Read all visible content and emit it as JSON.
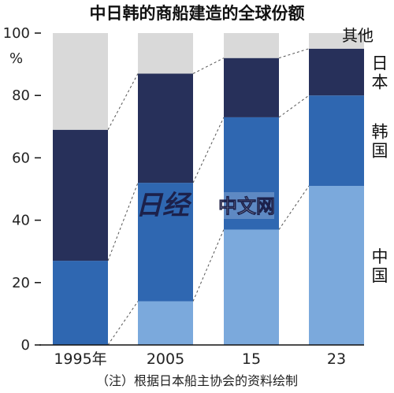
{
  "chart_data": {
    "type": "bar",
    "stacked": true,
    "percent": true,
    "title": "中日韩的商船建造的全球份额",
    "unit_label": "%",
    "categories": [
      "1995年",
      "2005",
      "15",
      "23"
    ],
    "ylim": [
      0,
      100
    ],
    "yticks": [
      0,
      20,
      40,
      60,
      80,
      100
    ],
    "grid": false,
    "legend": "right-side labels",
    "series": [
      {
        "name": "中国",
        "values": [
          0,
          14,
          37,
          51
        ]
      },
      {
        "name": "韩国",
        "values": [
          27,
          38,
          36,
          29
        ]
      },
      {
        "name": "日本",
        "values": [
          42,
          35,
          19,
          15
        ]
      },
      {
        "name": "其他",
        "values": [
          31,
          13,
          8,
          5
        ]
      }
    ],
    "colors": {
      "中国": "#7ba9dc",
      "韩国": "#2f67b1",
      "日本": "#27305a",
      "其他": "#d9d9d9"
    },
    "note": "（注）根据日本船主协会的资料绘制"
  },
  "watermark": {
    "logo_text": "日经",
    "text": "中文网"
  }
}
